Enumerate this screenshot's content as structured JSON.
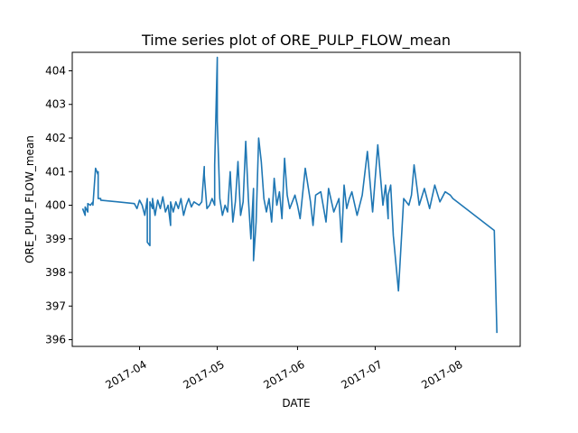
{
  "chart_data": {
    "type": "line",
    "title": "Time series plot of ORE_PULP_FLOW_mean",
    "xlabel": "DATE",
    "ylabel": "ORE_PULP_FLOW_mean",
    "x_type": "date",
    "xlim": [
      "2017-03-06",
      "2017-08-26"
    ],
    "ylim": [
      395.8,
      404.55
    ],
    "grid": false,
    "legend": "none",
    "x_ticks": [
      {
        "value": "2017-04-01",
        "label": "2017-04"
      },
      {
        "value": "2017-05-01",
        "label": "2017-05"
      },
      {
        "value": "2017-06-01",
        "label": "2017-06"
      },
      {
        "value": "2017-07-01",
        "label": "2017-07"
      },
      {
        "value": "2017-08-01",
        "label": "2017-08"
      }
    ],
    "y_ticks": [
      396,
      397,
      398,
      399,
      400,
      401,
      402,
      403,
      404
    ],
    "color": "#1f77b4",
    "series": [
      {
        "x": [
          "2017-03-10",
          "2017-03-11",
          "2017-03-11",
          "2017-03-12",
          "2017-03-12",
          "2017-03-13",
          "2017-03-14",
          "2017-03-14",
          "2017-03-15",
          "2017-03-16",
          "2017-03-16",
          "2017-03-16",
          "2017-03-17",
          "2017-03-17",
          "2017-03-30",
          "2017-03-31",
          "2017-04-01",
          "2017-04-02",
          "2017-04-03",
          "2017-04-04",
          "2017-04-04",
          "2017-04-05",
          "2017-04-05",
          "2017-04-06",
          "2017-04-06",
          "2017-04-07",
          "2017-04-08",
          "2017-04-09",
          "2017-04-10",
          "2017-04-11",
          "2017-04-12",
          "2017-04-13",
          "2017-04-13",
          "2017-04-14",
          "2017-04-15",
          "2017-04-16",
          "2017-04-17",
          "2017-04-18",
          "2017-04-19",
          "2017-04-20",
          "2017-04-21",
          "2017-04-22",
          "2017-04-24",
          "2017-04-25",
          "2017-04-26",
          "2017-04-26",
          "2017-04-27",
          "2017-04-28",
          "2017-04-29",
          "2017-04-30",
          "2017-04-30",
          "2017-05-01",
          "2017-05-01",
          "2017-05-02",
          "2017-05-03",
          "2017-05-04",
          "2017-05-05",
          "2017-05-06",
          "2017-05-07",
          "2017-05-08",
          "2017-05-09",
          "2017-05-10",
          "2017-05-11",
          "2017-05-12",
          "2017-05-13",
          "2017-05-14",
          "2017-05-15",
          "2017-05-15",
          "2017-05-16",
          "2017-05-17",
          "2017-05-18",
          "2017-05-19",
          "2017-05-20",
          "2017-05-21",
          "2017-05-22",
          "2017-05-23",
          "2017-05-24",
          "2017-05-25",
          "2017-05-26",
          "2017-05-27",
          "2017-05-28",
          "2017-05-29",
          "2017-05-31",
          "2017-06-01",
          "2017-06-02",
          "2017-06-04",
          "2017-06-06",
          "2017-06-07",
          "2017-06-08",
          "2017-06-10",
          "2017-06-12",
          "2017-06-13",
          "2017-06-15",
          "2017-06-17",
          "2017-06-18",
          "2017-06-19",
          "2017-06-20",
          "2017-06-21",
          "2017-06-22",
          "2017-06-24",
          "2017-06-26",
          "2017-06-28",
          "2017-06-30",
          "2017-07-02",
          "2017-07-04",
          "2017-07-05",
          "2017-07-06",
          "2017-07-06",
          "2017-07-07",
          "2017-07-08",
          "2017-07-10",
          "2017-07-12",
          "2017-07-14",
          "2017-07-15",
          "2017-07-16",
          "2017-07-18",
          "2017-07-20",
          "2017-07-22",
          "2017-07-24",
          "2017-07-26",
          "2017-07-28",
          "2017-07-30",
          "2017-07-31",
          "2017-08-16",
          "2017-08-17"
        ],
        "y": [
          399.9,
          399.7,
          399.95,
          399.8,
          400.05,
          400.0,
          400.1,
          400.0,
          401.1,
          400.9,
          401.0,
          400.2,
          400.2,
          400.15,
          400.05,
          399.9,
          400.15,
          400.0,
          399.7,
          400.2,
          398.9,
          398.8,
          400.1,
          399.9,
          400.2,
          399.7,
          400.15,
          399.9,
          400.25,
          399.8,
          400.0,
          399.4,
          400.1,
          399.8,
          400.1,
          399.9,
          400.2,
          399.7,
          400.0,
          400.2,
          399.95,
          400.1,
          400.0,
          400.1,
          401.15,
          400.9,
          399.9,
          400.0,
          400.2,
          400.0,
          401.2,
          404.4,
          402.5,
          400.2,
          399.7,
          400.0,
          399.8,
          401.0,
          399.5,
          400.1,
          401.3,
          399.7,
          400.1,
          401.9,
          400.2,
          399.0,
          400.5,
          398.35,
          399.5,
          402.0,
          401.3,
          400.2,
          399.8,
          400.2,
          399.5,
          400.8,
          400.0,
          400.4,
          399.6,
          401.4,
          400.3,
          399.9,
          400.3,
          400.0,
          399.6,
          401.1,
          400.1,
          399.4,
          400.3,
          400.4,
          399.5,
          400.5,
          399.8,
          400.2,
          398.9,
          400.6,
          399.9,
          400.2,
          400.4,
          399.7,
          400.3,
          401.6,
          399.8,
          401.8,
          400.0,
          400.6,
          399.6,
          400.3,
          400.6,
          399.1,
          397.45,
          400.2,
          400.0,
          400.3,
          401.2,
          400.0,
          400.5,
          399.9,
          400.6,
          400.1,
          400.4,
          400.3,
          400.2,
          399.25,
          396.2
        ]
      }
    ]
  }
}
